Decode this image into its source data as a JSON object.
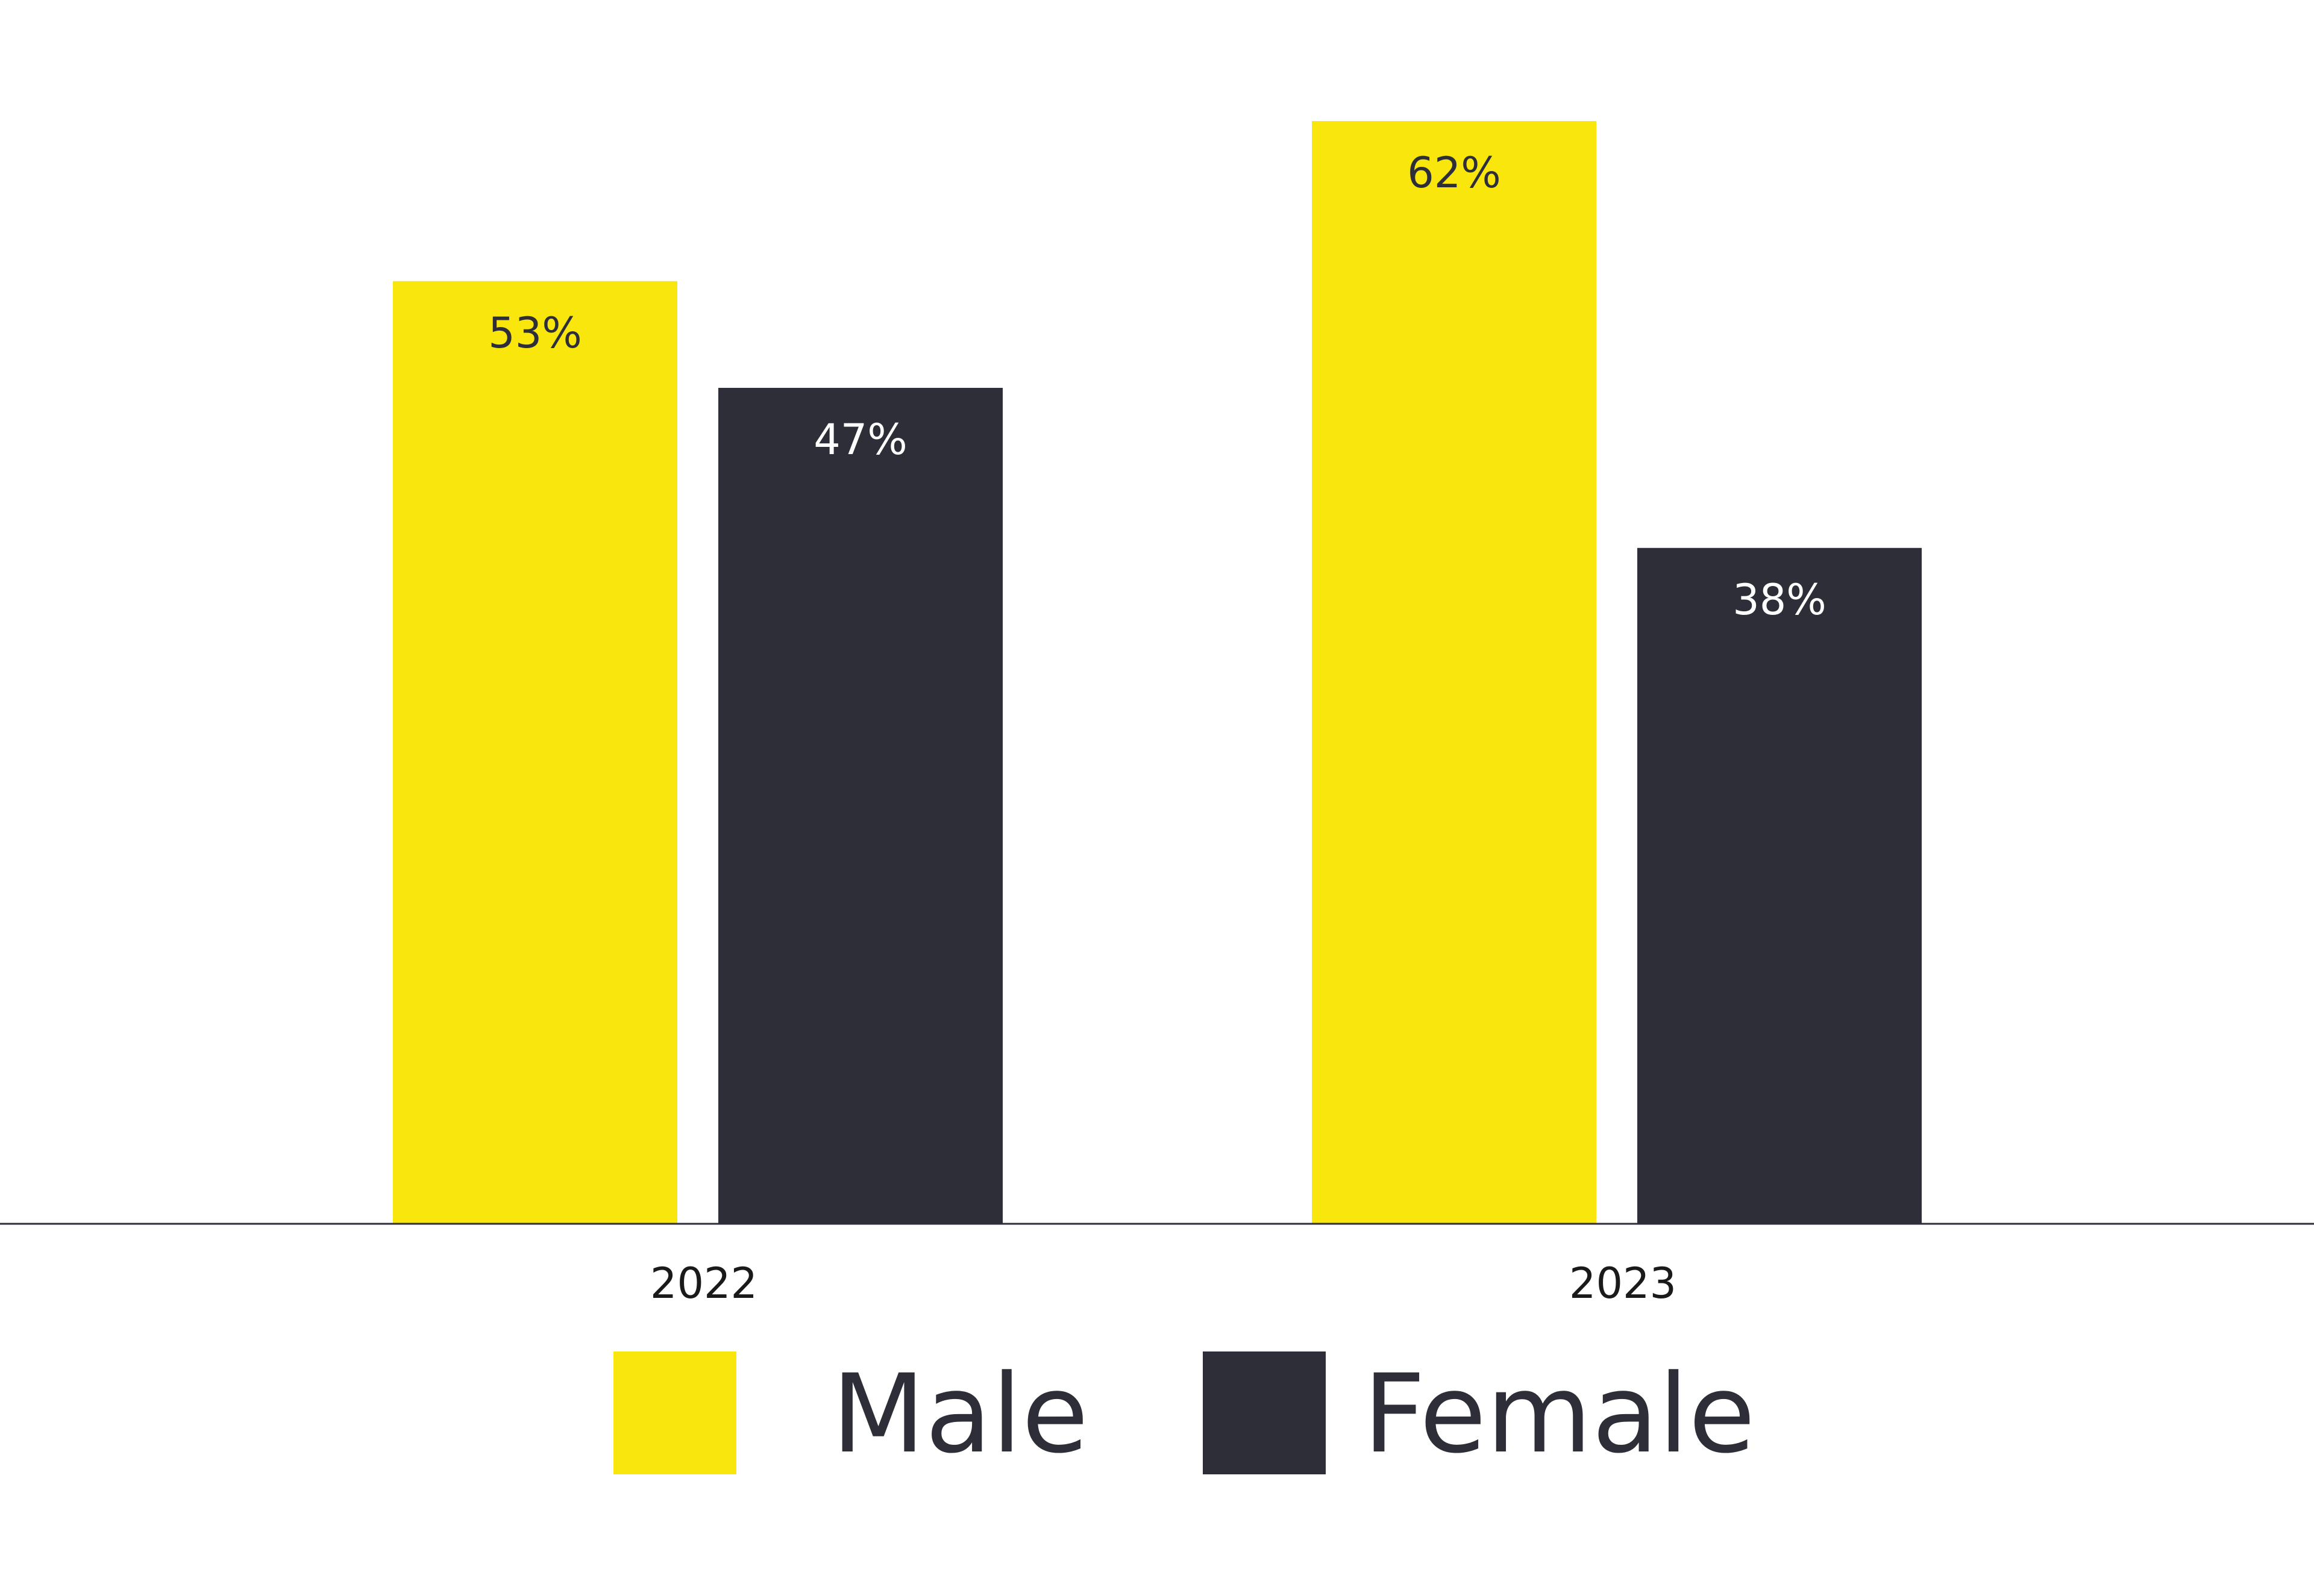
{
  "chart_data": {
    "type": "bar",
    "categories": [
      "2022",
      "2023"
    ],
    "series": [
      {
        "name": "Male",
        "values": [
          53,
          62
        ],
        "labels": [
          "53%",
          "62%"
        ],
        "color": "#f8e60c",
        "label_color": "#2e2e38"
      },
      {
        "name": "Female",
        "values": [
          47,
          38
        ],
        "labels": [
          "47%",
          "38%"
        ],
        "color": "#2e2e38",
        "label_color": "#ffffff"
      }
    ],
    "ylim": [
      0,
      62
    ],
    "grid": false,
    "legend_placement": "bottom-center",
    "axis_color": "#2e2e38"
  }
}
